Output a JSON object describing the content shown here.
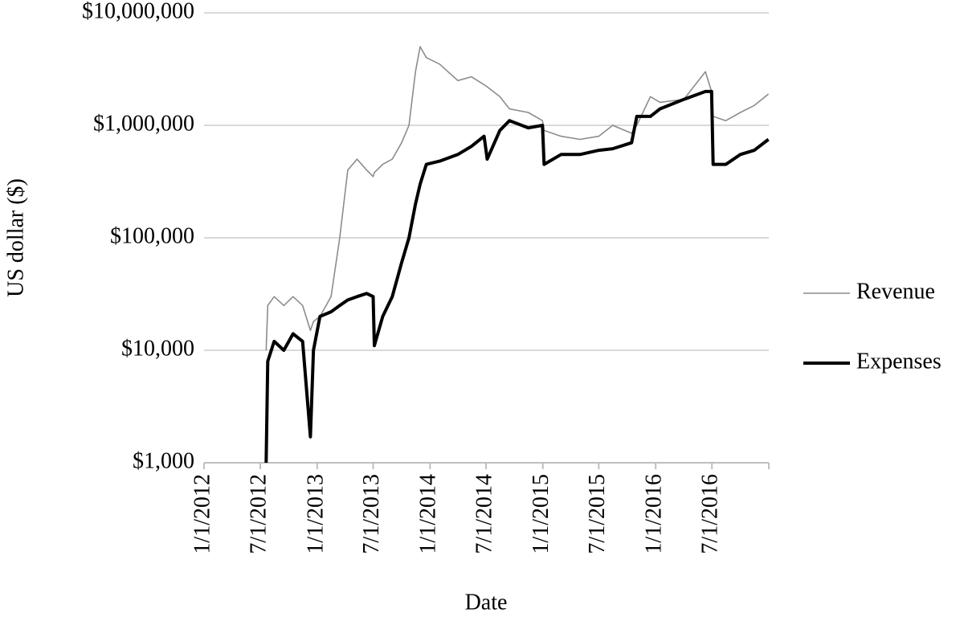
{
  "chart_data": {
    "type": "line",
    "x_label": "Date",
    "y_label": "US dollar ($)",
    "log_y": true,
    "grid": true,
    "legend": "right",
    "xlim": [
      "2012-01-01",
      "2017-01-01"
    ],
    "xticks": [
      {
        "value": "2012-01-01",
        "label": "1/1/2012"
      },
      {
        "value": "2012-07-01",
        "label": "7/1/2012"
      },
      {
        "value": "2013-01-01",
        "label": "1/1/2013"
      },
      {
        "value": "2013-07-01",
        "label": "7/1/2013"
      },
      {
        "value": "2014-01-01",
        "label": "1/1/2014"
      },
      {
        "value": "2014-07-01",
        "label": "7/1/2014"
      },
      {
        "value": "2015-01-01",
        "label": "1/1/2015"
      },
      {
        "value": "2015-07-01",
        "label": "7/1/2015"
      },
      {
        "value": "2016-01-01",
        "label": "1/1/2016"
      },
      {
        "value": "2016-07-01",
        "label": "7/1/2016"
      }
    ],
    "ylim": [
      1000,
      10000000
    ],
    "yticks": [
      {
        "value": 1000,
        "label": "$1,000"
      },
      {
        "value": 10000,
        "label": "$10,000"
      },
      {
        "value": 100000,
        "label": "$100,000"
      },
      {
        "value": 1000000,
        "label": "$1,000,000"
      },
      {
        "value": 10000000,
        "label": "$10,000,000"
      }
    ],
    "x": [
      "2012-07-20",
      "2012-07-25",
      "2012-08-15",
      "2012-09-15",
      "2012-10-15",
      "2012-11-15",
      "2012-12-10",
      "2012-12-20",
      "2013-01-10",
      "2013-02-15",
      "2013-03-15",
      "2013-04-10",
      "2013-05-10",
      "2013-06-10",
      "2013-07-01",
      "2013-07-05",
      "2013-08-01",
      "2013-09-01",
      "2013-10-01",
      "2013-10-25",
      "2013-11-15",
      "2013-11-30",
      "2013-12-20",
      "2014-02-01",
      "2014-04-01",
      "2014-05-15",
      "2014-06-25",
      "2014-07-05",
      "2014-08-15",
      "2014-09-15",
      "2014-11-15",
      "2014-12-31",
      "2015-01-05",
      "2015-03-01",
      "2015-05-01",
      "2015-07-01",
      "2015-08-15",
      "2015-10-15",
      "2015-11-01",
      "2015-12-15",
      "2016-01-15",
      "2016-04-01",
      "2016-06-10",
      "2016-06-30",
      "2016-07-05",
      "2016-08-15",
      "2016-10-01",
      "2016-11-15",
      "2016-12-31"
    ],
    "series": [
      {
        "name": "Revenue",
        "color": "#8c8c8c",
        "width": 1.6,
        "values": [
          10000,
          25000,
          30000,
          25000,
          30000,
          25000,
          15000,
          18000,
          20000,
          30000,
          100000,
          400000,
          500000,
          400000,
          350000,
          380000,
          450000,
          500000,
          700000,
          1000000,
          3000000,
          5000000,
          4000000,
          3500000,
          2500000,
          2700000,
          2300000,
          2200000,
          1800000,
          1400000,
          1300000,
          1100000,
          900000,
          800000,
          750000,
          800000,
          1000000,
          850000,
          1000000,
          1800000,
          1600000,
          1700000,
          3000000,
          2000000,
          1200000,
          1100000,
          1300000,
          1500000,
          1900000
        ]
      },
      {
        "name": "Expenses",
        "color": "#000000",
        "width": 4,
        "values": [
          1000,
          8000,
          12000,
          10000,
          14000,
          12000,
          1700,
          10000,
          20000,
          22000,
          25000,
          28000,
          30000,
          32000,
          30000,
          11000,
          20000,
          30000,
          60000,
          100000,
          200000,
          300000,
          450000,
          480000,
          550000,
          650000,
          800000,
          500000,
          900000,
          1100000,
          950000,
          1000000,
          450000,
          550000,
          550000,
          600000,
          620000,
          700000,
          1200000,
          1200000,
          1400000,
          1700000,
          2000000,
          2000000,
          450000,
          450000,
          550000,
          600000,
          750000
        ]
      }
    ]
  }
}
